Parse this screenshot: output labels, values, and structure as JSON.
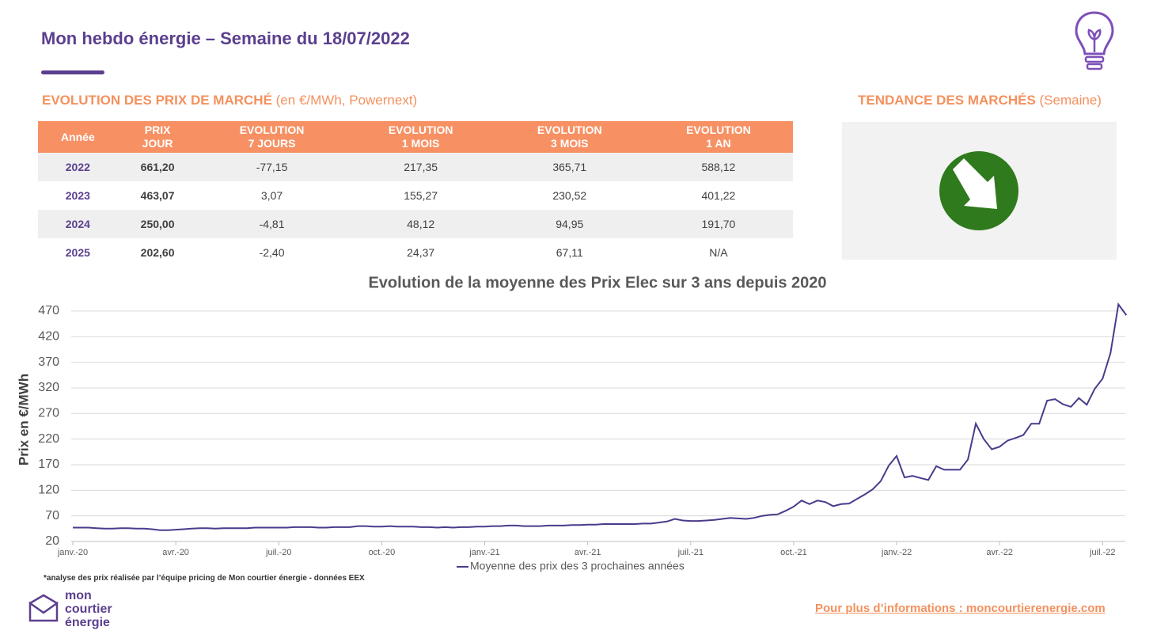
{
  "header": {
    "title": "Mon hebdo énergie – Semaine du 18/07/2022"
  },
  "market_section": {
    "title_bold": "EVOLUTION DES PRIX DE MARCHÉ",
    "title_normal": " (en €/MWh, Powernext)"
  },
  "trend_section": {
    "title_bold": "TENDANCE DES MARCHÉS",
    "title_normal": " (Semaine)"
  },
  "table": {
    "columns": [
      "Année",
      "PRIX\nJOUR",
      "EVOLUTION\n7 JOURS",
      "EVOLUTION\n1 MOIS",
      "EVOLUTION\n3 MOIS",
      "EVOLUTION\n1 AN"
    ],
    "rows": [
      [
        "2022",
        "661,20",
        "-77,15",
        "217,35",
        "365,71",
        "588,12"
      ],
      [
        "2023",
        "463,07",
        "3,07",
        "155,27",
        "230,52",
        "401,22"
      ],
      [
        "2024",
        "250,00",
        "-4,81",
        "48,12",
        "94,95",
        "191,70"
      ],
      [
        "2025",
        "202,60",
        "-2,40",
        "24,37",
        "67,11",
        "N/A"
      ]
    ]
  },
  "chart_data": {
    "type": "line",
    "title": "Evolution de la moyenne des Prix Elec sur 3 ans depuis 2020",
    "ylabel": "Prix en €/MWh",
    "categories": [
      "janv.-20",
      null,
      null,
      null,
      null,
      null,
      null,
      null,
      null,
      null,
      null,
      null,
      null,
      "avr.-20",
      null,
      null,
      null,
      null,
      null,
      null,
      null,
      null,
      null,
      null,
      null,
      null,
      "juil.-20",
      null,
      null,
      null,
      null,
      null,
      null,
      null,
      null,
      null,
      null,
      null,
      null,
      "oct.-20",
      null,
      null,
      null,
      null,
      null,
      null,
      null,
      null,
      null,
      null,
      null,
      null,
      "janv.-21",
      null,
      null,
      null,
      null,
      null,
      null,
      null,
      null,
      null,
      null,
      null,
      null,
      "avr.-21",
      null,
      null,
      null,
      null,
      null,
      null,
      null,
      null,
      null,
      null,
      null,
      null,
      "juil.-21",
      null,
      null,
      null,
      null,
      null,
      null,
      null,
      null,
      null,
      null,
      null,
      null,
      "oct.-21",
      null,
      null,
      null,
      null,
      null,
      null,
      null,
      null,
      null,
      null,
      null,
      null,
      "janv.-22",
      null,
      null,
      null,
      null,
      null,
      null,
      null,
      null,
      null,
      null,
      null,
      null,
      "avr.-22",
      null,
      null,
      null,
      null,
      null,
      null,
      null,
      null,
      null,
      null,
      null,
      null,
      "juil.-22",
      null,
      null,
      null
    ],
    "series": [
      {
        "name": "Moyenne des prix des 3 prochaines années",
        "color": "#4b3a8c",
        "values": [
          47,
          47,
          47,
          46,
          45,
          45,
          46,
          46,
          45,
          45,
          44,
          42,
          42,
          43,
          44,
          45,
          46,
          46,
          45,
          46,
          46,
          46,
          46,
          47,
          47,
          47,
          47,
          47,
          48,
          48,
          48,
          47,
          47,
          48,
          48,
          48,
          50,
          50,
          49,
          49,
          50,
          49,
          49,
          49,
          48,
          48,
          47,
          48,
          47,
          48,
          48,
          49,
          49,
          50,
          50,
          51,
          51,
          50,
          50,
          50,
          51,
          51,
          51,
          52,
          52,
          53,
          53,
          54,
          54,
          54,
          54,
          54,
          55,
          55,
          57,
          59,
          64,
          61,
          60,
          60,
          61,
          62,
          64,
          66,
          65,
          64,
          66,
          70,
          72,
          73,
          80,
          88,
          100,
          93,
          100,
          97,
          89,
          93,
          94,
          103,
          112,
          122,
          138,
          168,
          187,
          145,
          148,
          144,
          140,
          167,
          160,
          160,
          160,
          180,
          250,
          220,
          200,
          205,
          217,
          222,
          228,
          250,
          250,
          295,
          298,
          288,
          283,
          300,
          287,
          318,
          338,
          388,
          483,
          462
        ]
      }
    ],
    "ylim": [
      20,
      490
    ],
    "yticks": [
      20,
      70,
      120,
      170,
      220,
      270,
      320,
      370,
      420,
      470
    ],
    "grid": true
  },
  "footnote": "*analyse des prix réalisée par l’équipe pricing de Mon courtier énergie -  données EEX",
  "logo": {
    "lines": [
      "mon",
      "courtier",
      "énergie"
    ]
  },
  "footer": {
    "link": "Pour plus d’informations : moncourtierenergie.com"
  }
}
